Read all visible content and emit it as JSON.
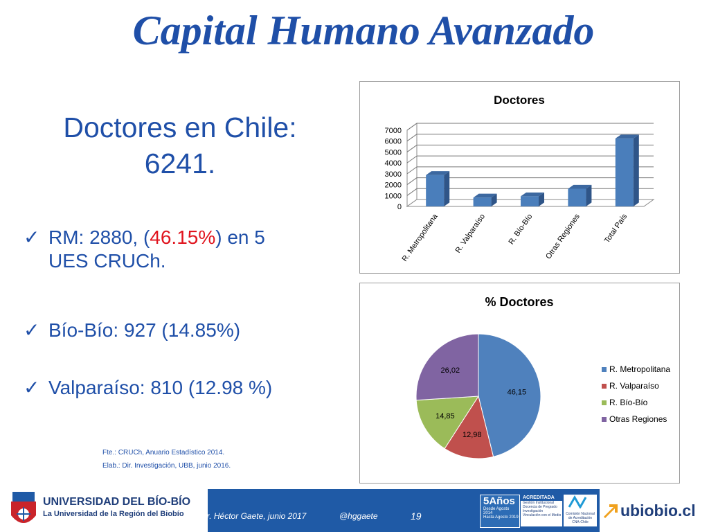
{
  "slide": {
    "title": "Capital Humano Avanzado",
    "headline_line1": "Doctores en Chile:",
    "headline_line2": "6241.",
    "bullets": [
      {
        "pre": "RM: 2880, (",
        "red": "46.15%",
        "post": ") en 5",
        "line2": "UES CRUCh."
      },
      {
        "text": "Bío-Bío: 927 (14.85%)"
      },
      {
        "text": "Valparaíso: 810 (12.98 %)"
      }
    ],
    "source1": "Fte.: CRUCh, Anuario Estadístico 2014.",
    "source2": "Elab.: Dir. Investigación, UBB, junio 2016."
  },
  "footer": {
    "university": "UNIVERSIDAD DEL BÍO-BÍO",
    "tagline": "La Universidad de la Región del Biobío",
    "author": "Dr. Héctor Gaete,  junio 2017",
    "handle": "@hggaete",
    "page": "19",
    "badge_years": "5Años",
    "badge_dates1": "Desde Agosto 2014",
    "badge_dates2": "Hasta Agosto 2019",
    "accredited": "ACREDITADA",
    "acc_items": [
      "Gestión Institucional",
      "Docencia de Pregrado",
      "Investigación",
      "Vinculación con el Medio"
    ],
    "cna1": "Comisión Nacional",
    "cna2": "de Acreditación",
    "cna3": "CNA-Chile",
    "site": "ubiobio.cl"
  },
  "chart_data": [
    {
      "type": "bar",
      "title": "Doctores",
      "categories": [
        "R. Metropolitana",
        "R. Valparaíso",
        "R. Bío-Bío",
        "Otras Regiones",
        "Total País"
      ],
      "values": [
        2880,
        810,
        927,
        1624,
        6241
      ],
      "ylim": [
        0,
        7000
      ],
      "yticks": [
        0,
        1000,
        2000,
        3000,
        4000,
        5000,
        6000,
        7000
      ],
      "grid": true,
      "color": "#4a7ebb"
    },
    {
      "type": "pie",
      "title": "% Doctores",
      "labels": [
        "R. Metropolitana",
        "R. Valparaíso",
        "R. Bío-Bío",
        "Otras Regiones"
      ],
      "values": [
        46.15,
        12.98,
        14.85,
        26.02
      ],
      "data_labels": [
        "46,15",
        "12,98",
        "14,85",
        "26,02"
      ],
      "colors": [
        "#4f81bd",
        "#c0504d",
        "#9bbb59",
        "#8064a2"
      ],
      "legend": "right"
    }
  ]
}
